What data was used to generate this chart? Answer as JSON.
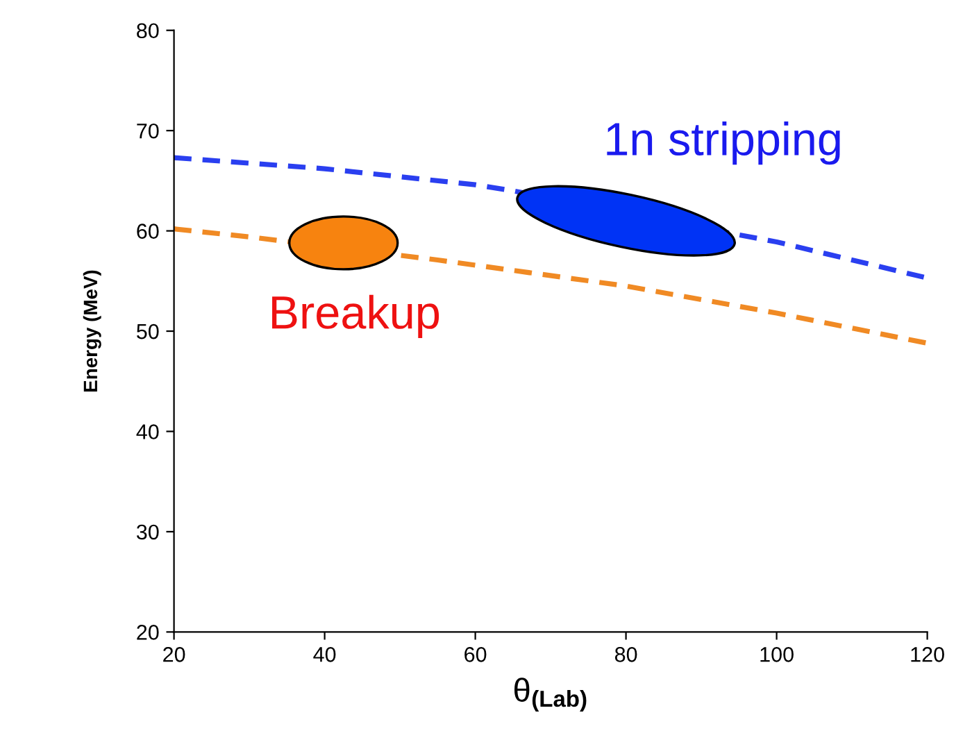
{
  "chart_data": {
    "type": "line",
    "xlabel": "θ$_{(Lab)}$",
    "ylabel": "Energy (MeV)",
    "xlim": [
      20,
      120
    ],
    "xticks": [
      20,
      40,
      60,
      80,
      100,
      120
    ],
    "ylim": [
      20,
      80
    ],
    "yticks": [
      20,
      30,
      40,
      50,
      60,
      70,
      80
    ],
    "grid": false,
    "line_style": "dashed",
    "series": [
      {
        "color": "#2a3ff0",
        "x": [
          20,
          40,
          60,
          65,
          95,
          100,
          120
        ],
        "values": [
          67.3,
          66.2,
          64.6,
          64.0,
          59.6,
          58.9,
          55.3
        ]
      },
      {
        "color": "#f08a24",
        "x": [
          20,
          30,
          55,
          80,
          100,
          120
        ],
        "values": [
          60.2,
          59.4,
          57.1,
          54.5,
          51.8,
          48.8
        ]
      }
    ],
    "annotations": [
      {
        "text": "Breakup",
        "x": 42.5,
        "y": 58.8
      },
      {
        "text": "1n stripping",
        "x": 80,
        "y": 61
      }
    ]
  }
}
